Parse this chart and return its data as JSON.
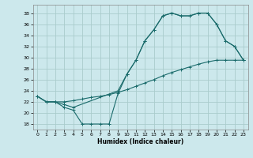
{
  "xlabel": "Humidex (Indice chaleur)",
  "bg_color": "#cce8ec",
  "grid_color": "#aacccc",
  "line_color": "#1a6b6b",
  "xlim": [
    -0.5,
    23.5
  ],
  "ylim": [
    17,
    39.5
  ],
  "yticks": [
    18,
    20,
    22,
    24,
    26,
    28,
    30,
    32,
    34,
    36,
    38
  ],
  "xticks": [
    0,
    1,
    2,
    3,
    4,
    5,
    6,
    7,
    8,
    9,
    10,
    11,
    12,
    13,
    14,
    15,
    16,
    17,
    18,
    19,
    20,
    21,
    22,
    23
  ],
  "line_jagged_x": [
    0,
    1,
    2,
    3,
    4,
    5,
    6,
    7,
    8,
    9,
    10,
    11,
    12,
    13,
    14,
    15,
    16,
    17,
    18,
    19,
    20,
    21,
    22,
    23
  ],
  "line_jagged_y": [
    23,
    22,
    22,
    21,
    20.5,
    18,
    18,
    18,
    18,
    23.5,
    27,
    29.5,
    33,
    35,
    37.5,
    38,
    37.5,
    37.5,
    38,
    38,
    36,
    33,
    32,
    29.5
  ],
  "line_upper_x": [
    0,
    1,
    2,
    3,
    4,
    9,
    10,
    11,
    12,
    13,
    14,
    15,
    16,
    17,
    18,
    19,
    20,
    21,
    22,
    23
  ],
  "line_upper_y": [
    23,
    22,
    22,
    21.5,
    21,
    24,
    27,
    29.5,
    33,
    35,
    37.5,
    38,
    37.5,
    37.5,
    38,
    38,
    36,
    33,
    32,
    29.5
  ],
  "line_diag_x": [
    0,
    1,
    2,
    3,
    4,
    5,
    6,
    7,
    8,
    9,
    10,
    11,
    12,
    13,
    14,
    15,
    16,
    17,
    18,
    19,
    20,
    21,
    22,
    23
  ],
  "line_diag_y": [
    23,
    22,
    22,
    22,
    22.2,
    22.5,
    22.8,
    23.0,
    23.3,
    23.7,
    24.2,
    24.8,
    25.4,
    26.0,
    26.7,
    27.3,
    27.8,
    28.3,
    28.8,
    29.2,
    29.5,
    29.5,
    29.5,
    29.5
  ]
}
